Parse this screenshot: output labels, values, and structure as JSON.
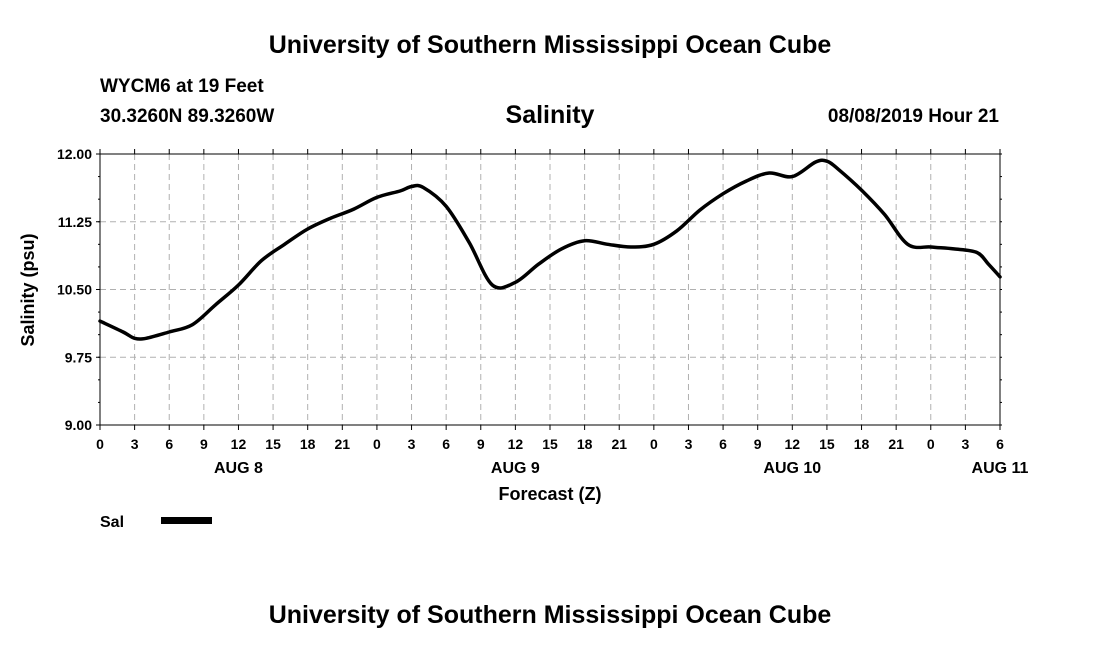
{
  "header": {
    "title": "University of Southern Mississippi Ocean Cube",
    "station": "WYCM6 at 19 Feet",
    "coords": "30.3260N 89.3260W",
    "timestamp": "08/08/2019 Hour 21"
  },
  "footer": {
    "title": "University of Southern Mississippi Ocean Cube"
  },
  "chart_data": {
    "type": "line",
    "title": "Salinity",
    "xlabel": "Forecast (Z)",
    "ylabel": "Salinity (psu)",
    "ylim": [
      9.0,
      12.0
    ],
    "xlim": [
      0,
      78
    ],
    "grid": true,
    "legend_position": "bottom-left",
    "ytick_labels": [
      "12.00",
      "11.25",
      "10.50",
      "9.75",
      "9.00"
    ],
    "ytick_values": [
      12.0,
      11.25,
      10.5,
      9.75,
      9.0
    ],
    "xtick_labels": [
      "0",
      "3",
      "6",
      "9",
      "12",
      "15",
      "18",
      "21",
      "0",
      "3",
      "6",
      "9",
      "12",
      "15",
      "18",
      "21",
      "0",
      "3",
      "6",
      "9",
      "12",
      "15",
      "18",
      "21",
      "0",
      "3",
      "6"
    ],
    "date_labels": [
      {
        "label": "AUG 8",
        "hour": 12
      },
      {
        "label": "AUG 9",
        "hour": 36
      },
      {
        "label": "AUG 10",
        "hour": 60
      },
      {
        "label": "AUG 11",
        "hour": 78
      }
    ],
    "series": [
      {
        "name": "Sal",
        "color": "#000000",
        "x": [
          0,
          2,
          3,
          4,
          6,
          8,
          10,
          12,
          14,
          16,
          18,
          20,
          22,
          24,
          26,
          27,
          28,
          30,
          32,
          34,
          36,
          38,
          40,
          42,
          44,
          46,
          48,
          50,
          52,
          54,
          56,
          58,
          60,
          62,
          63,
          64,
          66,
          68,
          70,
          72,
          74,
          76,
          77,
          78
        ],
        "y": [
          10.15,
          10.03,
          9.96,
          9.96,
          10.03,
          10.11,
          10.33,
          10.55,
          10.82,
          11.0,
          11.17,
          11.29,
          11.39,
          11.52,
          11.59,
          11.64,
          11.63,
          11.42,
          11.02,
          10.55,
          10.58,
          10.78,
          10.95,
          11.04,
          11.0,
          10.97,
          11.0,
          11.15,
          11.38,
          11.56,
          11.7,
          11.79,
          11.75,
          11.91,
          11.92,
          11.83,
          11.6,
          11.33,
          11.0,
          10.97,
          10.95,
          10.91,
          10.78,
          10.64
        ]
      }
    ]
  },
  "colors": {
    "background": "#ffffff",
    "line": "#000000",
    "grid": "#b0b0b0"
  }
}
